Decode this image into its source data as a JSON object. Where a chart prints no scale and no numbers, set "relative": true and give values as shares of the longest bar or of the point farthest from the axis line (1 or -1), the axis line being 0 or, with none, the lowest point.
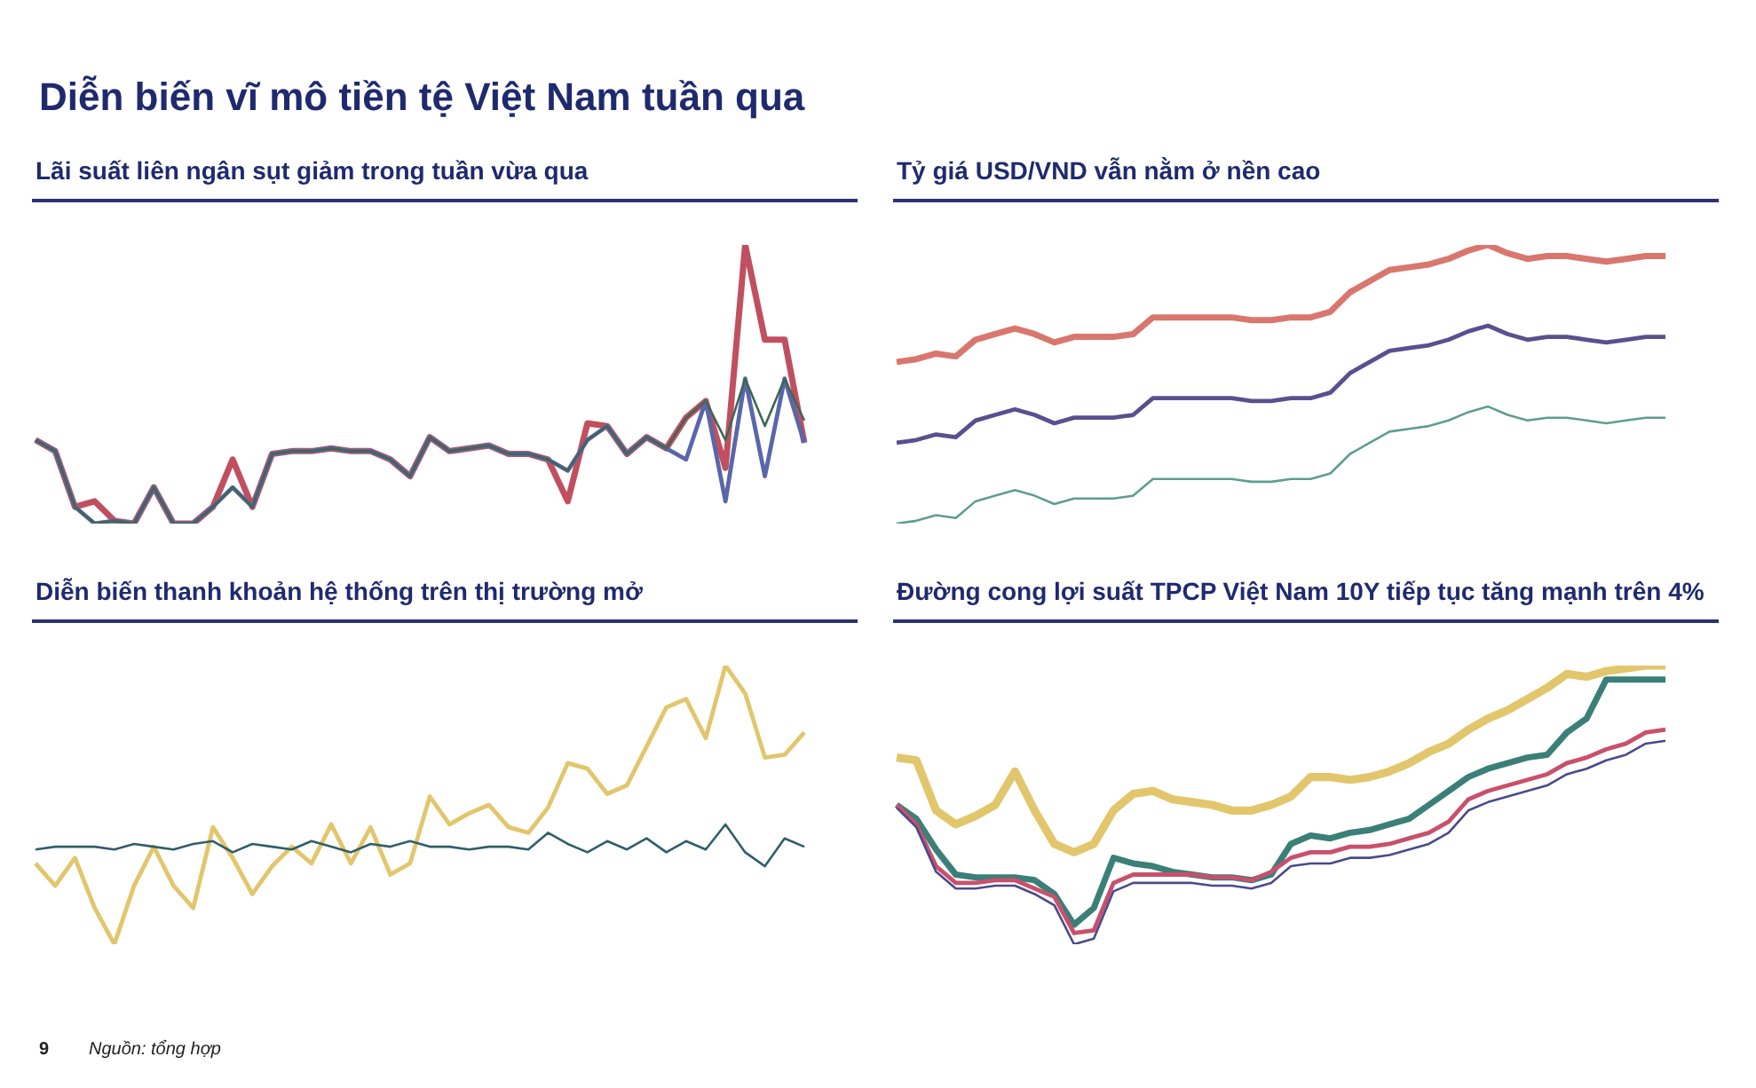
{
  "chart_data": [
    {
      "type": "line",
      "title": "Diễn biến vĩ mô tiền tệ Việt Nam tuần qua",
      "subtitle": "Lãi suất liên ngân sụt giảm trong tuần vừa qua",
      "relative": true,
      "annotations": [
        "9",
        "Nguồn: tổng hợp"
      ],
      "categories": [
        null,
        null,
        null,
        null,
        null,
        null,
        null,
        null,
        null,
        null,
        null,
        null,
        null,
        null,
        null,
        null,
        null,
        null,
        null,
        null,
        null,
        null,
        null,
        null,
        null,
        null,
        null,
        null,
        null,
        null,
        null,
        null,
        null,
        null,
        null,
        null,
        null,
        null,
        null,
        null
      ],
      "series": [
        {
          "color": "#c0505f",
          "values": [
            0.3,
            0.26,
            0.06,
            0.08,
            0.01,
            0,
            0.13,
            0,
            0,
            0.06,
            0.23,
            0.06,
            0.25,
            0.26,
            0.26,
            0.27,
            0.26,
            0.26,
            0.23,
            0.17,
            0.31,
            0.26,
            0.27,
            0.28,
            0.25,
            0.25,
            0.23,
            0.08,
            0.36,
            0.35,
            0.25,
            0.31,
            0.27,
            0.38,
            0.44,
            0.2,
            1,
            0.66,
            0.66,
            0.29
          ]
        },
        {
          "color": "#5a66aa",
          "values": [
            0.3,
            0.26,
            0.06,
            0,
            0.01,
            0,
            0.13,
            0,
            0,
            0.06,
            0.13,
            0.06,
            0.25,
            0.26,
            0.26,
            0.27,
            0.26,
            0.26,
            0.23,
            0.17,
            0.31,
            0.26,
            0.27,
            0.28,
            0.25,
            0.25,
            0.23,
            0.19,
            0.3,
            0.35,
            0.25,
            0.31,
            0.27,
            0.23,
            0.44,
            0.08,
            0.52,
            0.17,
            0.52,
            0.29
          ]
        },
        {
          "color": "#3f6656",
          "values": [
            0.3,
            0.26,
            0.06,
            0,
            0.01,
            0,
            0.13,
            0,
            0,
            0.06,
            0.13,
            0.06,
            0.25,
            0.26,
            0.26,
            0.27,
            0.26,
            0.26,
            0.23,
            0.17,
            0.31,
            0.26,
            0.27,
            0.28,
            0.25,
            0.25,
            0.23,
            0.19,
            0.3,
            0.35,
            0.25,
            0.31,
            0.27,
            0.38,
            0.44,
            0.3,
            0.52,
            0.35,
            0.52,
            0.37
          ]
        }
      ]
    },
    {
      "type": "line",
      "title": "Tỷ giá USD/VND vẫn nằm ở nền cao",
      "relative": true,
      "categories": [
        null,
        null,
        null,
        null,
        null,
        null,
        null,
        null,
        null,
        null,
        null,
        null,
        null,
        null,
        null,
        null,
        null,
        null,
        null,
        null,
        null,
        null,
        null,
        null,
        null,
        null,
        null,
        null,
        null,
        null,
        null,
        null,
        null,
        null,
        null,
        null,
        null,
        null,
        null,
        null
      ],
      "series": [
        {
          "color": "#d9776e",
          "values": [
            0.58,
            0.59,
            0.61,
            0.6,
            0.66,
            0.68,
            0.7,
            0.68,
            0.65,
            0.67,
            0.67,
            0.67,
            0.68,
            0.74,
            0.74,
            0.74,
            0.74,
            0.74,
            0.73,
            0.73,
            0.74,
            0.74,
            0.76,
            0.83,
            0.87,
            0.91,
            0.92,
            0.93,
            0.95,
            0.98,
            1,
            0.97,
            0.95,
            0.96,
            0.96,
            0.95,
            0.94,
            0.95,
            0.96,
            0.96
          ]
        },
        {
          "color": "#5a4f8f",
          "values": [
            0.29,
            0.3,
            0.32,
            0.31,
            0.37,
            0.39,
            0.41,
            0.39,
            0.36,
            0.38,
            0.38,
            0.38,
            0.39,
            0.45,
            0.45,
            0.45,
            0.45,
            0.45,
            0.44,
            0.44,
            0.45,
            0.45,
            0.47,
            0.54,
            0.58,
            0.62,
            0.63,
            0.64,
            0.66,
            0.69,
            0.71,
            0.68,
            0.66,
            0.67,
            0.67,
            0.66,
            0.65,
            0.66,
            0.67,
            0.67
          ]
        },
        {
          "color": "#5e9e8e",
          "values": [
            0,
            0.01,
            0.03,
            0.02,
            0.08,
            0.1,
            0.12,
            0.1,
            0.07,
            0.09,
            0.09,
            0.09,
            0.1,
            0.16,
            0.16,
            0.16,
            0.16,
            0.16,
            0.15,
            0.15,
            0.16,
            0.16,
            0.18,
            0.25,
            0.29,
            0.33,
            0.34,
            0.35,
            0.37,
            0.4,
            0.42,
            0.39,
            0.37,
            0.38,
            0.38,
            0.37,
            0.36,
            0.37,
            0.38,
            0.38
          ]
        }
      ]
    },
    {
      "type": "line",
      "title": "Diễn biến thanh khoản hệ thống trên thị trường mở",
      "relative": true,
      "categories": [
        null,
        null,
        null,
        null,
        null,
        null,
        null,
        null,
        null,
        null,
        null,
        null,
        null,
        null,
        null,
        null,
        null,
        null,
        null,
        null,
        null,
        null,
        null,
        null,
        null,
        null,
        null,
        null,
        null,
        null,
        null,
        null,
        null,
        null,
        null,
        null,
        null,
        null,
        null,
        null
      ],
      "series": [
        {
          "color": "#e2c66c",
          "values": [
            0.29,
            0.21,
            0.31,
            0.13,
            0,
            0.21,
            0.35,
            0.21,
            0.13,
            0.42,
            0.31,
            0.18,
            0.28,
            0.35,
            0.29,
            0.43,
            0.29,
            0.42,
            0.25,
            0.29,
            0.53,
            0.43,
            0.47,
            0.5,
            0.42,
            0.4,
            0.49,
            0.65,
            0.63,
            0.54,
            0.57,
            0.71,
            0.85,
            0.88,
            0.74,
            1,
            0.9,
            0.67,
            0.68,
            0.76
          ]
        },
        {
          "color": "#2f5f6b",
          "values": [
            0.34,
            0.35,
            0.35,
            0.35,
            0.34,
            0.36,
            0.35,
            0.34,
            0.36,
            0.37,
            0.33,
            0.36,
            0.35,
            0.34,
            0.37,
            0.35,
            0.33,
            0.36,
            0.35,
            0.37,
            0.35,
            0.35,
            0.34,
            0.35,
            0.35,
            0.34,
            0.4,
            0.36,
            0.33,
            0.37,
            0.34,
            0.38,
            0.33,
            0.37,
            0.34,
            0.43,
            0.33,
            0.28,
            0.38,
            0.35
          ]
        }
      ]
    },
    {
      "type": "line",
      "title": "Đường cong lợi suất TPCP Việt Nam 10Y tiếp tục tăng mạnh trên 4%",
      "relative": true,
      "categories": [
        null,
        null,
        null,
        null,
        null,
        null,
        null,
        null,
        null,
        null,
        null,
        null,
        null,
        null,
        null,
        null,
        null,
        null,
        null,
        null,
        null,
        null,
        null,
        null,
        null,
        null,
        null,
        null,
        null,
        null,
        null,
        null,
        null,
        null,
        null,
        null,
        null,
        null,
        null,
        null
      ],
      "series": [
        {
          "color": "#e2c66c",
          "values": [
            0.67,
            0.66,
            0.48,
            0.43,
            0.46,
            0.5,
            0.62,
            0.48,
            0.36,
            0.33,
            0.36,
            0.48,
            0.54,
            0.55,
            0.52,
            0.51,
            0.5,
            0.48,
            0.48,
            0.5,
            0.53,
            0.6,
            0.6,
            0.59,
            0.6,
            0.62,
            0.65,
            0.69,
            0.72,
            0.77,
            0.81,
            0.84,
            0.88,
            0.92,
            0.97,
            0.96,
            0.98,
            0.99,
            1,
            1
          ]
        },
        {
          "color": "#3a7f78",
          "values": [
            0.5,
            0.45,
            0.34,
            0.25,
            0.24,
            0.24,
            0.24,
            0.23,
            0.18,
            0.07,
            0.13,
            0.31,
            0.29,
            0.28,
            0.26,
            0.25,
            0.24,
            0.24,
            0.23,
            0.25,
            0.36,
            0.39,
            0.38,
            0.4,
            0.41,
            0.43,
            0.45,
            0.5,
            0.55,
            0.6,
            0.63,
            0.65,
            0.67,
            0.68,
            0.76,
            0.81,
            0.95,
            0.95,
            0.95,
            0.95
          ]
        },
        {
          "color": "#c9506c",
          "values": [
            0.5,
            0.43,
            0.28,
            0.22,
            0.22,
            0.23,
            0.23,
            0.2,
            0.17,
            0.04,
            0.05,
            0.22,
            0.25,
            0.25,
            0.25,
            0.25,
            0.24,
            0.24,
            0.23,
            0.26,
            0.31,
            0.33,
            0.33,
            0.35,
            0.35,
            0.36,
            0.38,
            0.4,
            0.44,
            0.52,
            0.55,
            0.57,
            0.59,
            0.61,
            0.65,
            0.67,
            0.7,
            0.72,
            0.76,
            0.77
          ]
        },
        {
          "color": "#4a4a8a",
          "values": [
            0.49,
            0.42,
            0.26,
            0.2,
            0.2,
            0.21,
            0.21,
            0.18,
            0.14,
            0,
            0.02,
            0.19,
            0.22,
            0.22,
            0.22,
            0.22,
            0.21,
            0.21,
            0.2,
            0.22,
            0.28,
            0.29,
            0.29,
            0.31,
            0.31,
            0.32,
            0.34,
            0.36,
            0.4,
            0.48,
            0.51,
            0.53,
            0.55,
            0.57,
            0.61,
            0.63,
            0.66,
            0.68,
            0.72,
            0.73
          ]
        }
      ]
    }
  ]
}
